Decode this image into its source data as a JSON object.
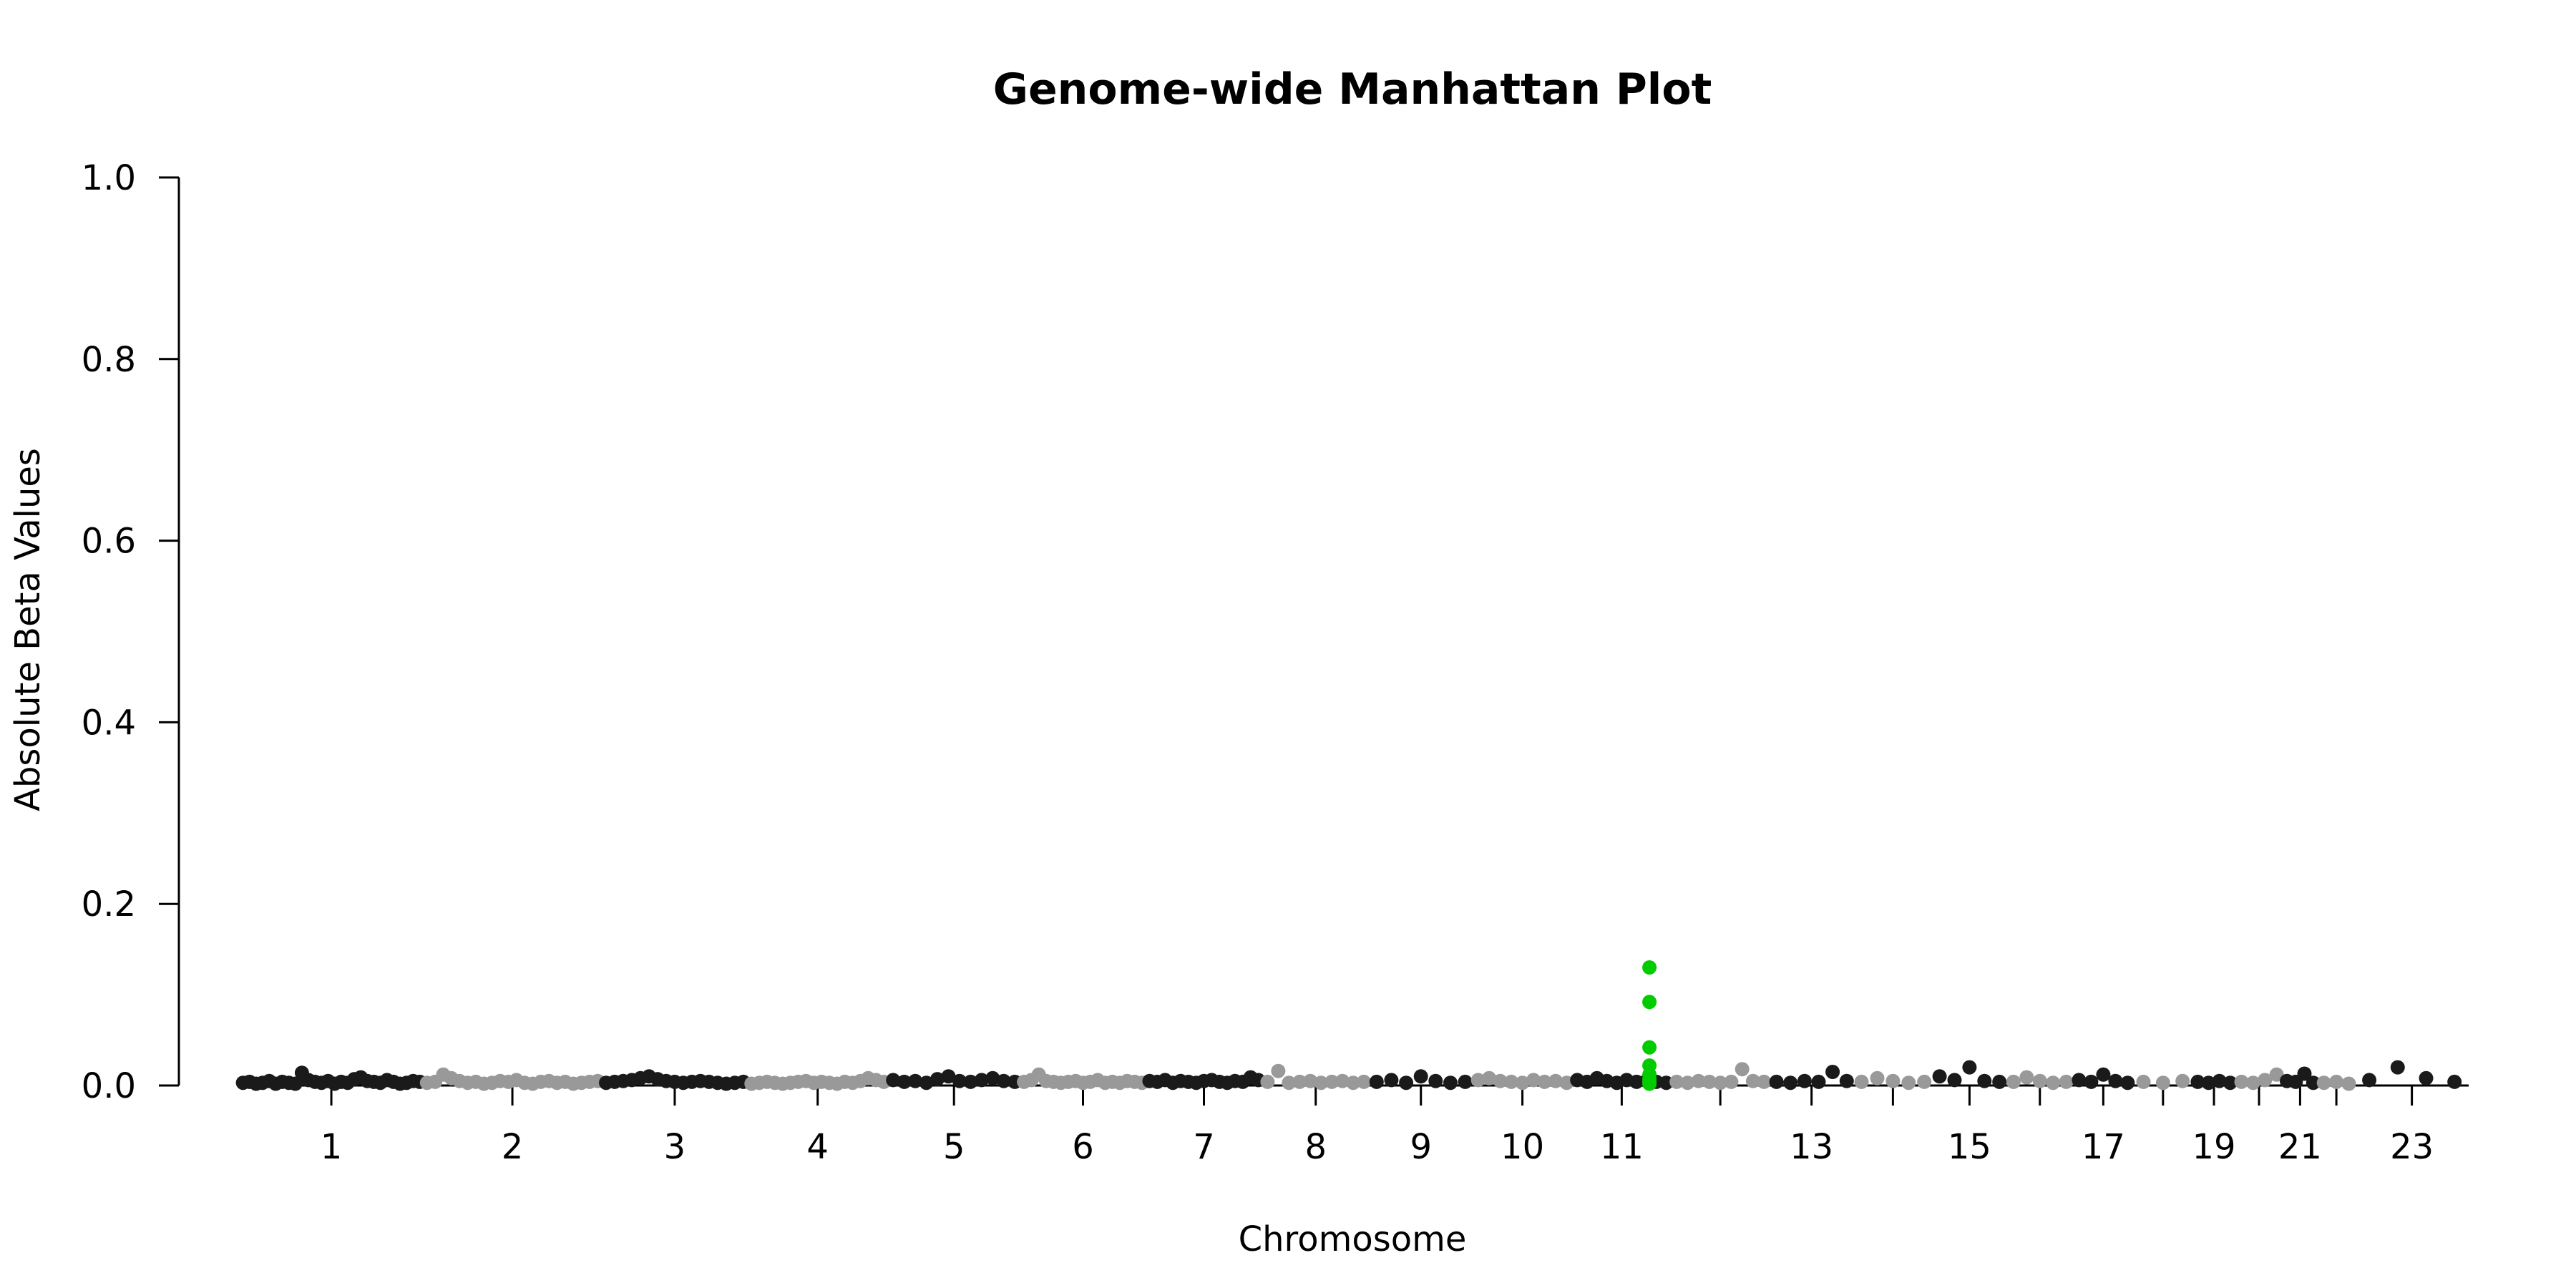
{
  "chart_data": {
    "type": "scatter",
    "title": "Genome-wide Manhattan Plot",
    "xlabel": "Chromosome",
    "ylabel": "Absolute Beta Values",
    "ylim": [
      0,
      1.0
    ],
    "y_ticks": [
      "0.0",
      "0.2",
      "0.4",
      "0.6",
      "0.8",
      "1.0"
    ],
    "grid": false,
    "legend": "none",
    "colors": {
      "dark": "#1a1a1a",
      "light": "#999999",
      "highlight": "#00cc00"
    },
    "chromosomes": [
      {
        "chrom": "1",
        "label": "1",
        "color": "dark"
      },
      {
        "chrom": "2",
        "label": "2",
        "color": "light"
      },
      {
        "chrom": "3",
        "label": "3",
        "color": "dark"
      },
      {
        "chrom": "4",
        "label": "4",
        "color": "light"
      },
      {
        "chrom": "5",
        "label": "5",
        "color": "dark"
      },
      {
        "chrom": "6",
        "label": "6",
        "color": "light"
      },
      {
        "chrom": "7",
        "label": "7",
        "color": "dark"
      },
      {
        "chrom": "8",
        "label": "8",
        "color": "light"
      },
      {
        "chrom": "9",
        "label": "9",
        "color": "dark"
      },
      {
        "chrom": "10",
        "label": "10",
        "color": "light"
      },
      {
        "chrom": "11",
        "label": "11",
        "color": "dark"
      },
      {
        "chrom": "12",
        "label": "",
        "color": "light"
      },
      {
        "chrom": "13",
        "label": "13",
        "color": "dark"
      },
      {
        "chrom": "14",
        "label": "",
        "color": "light"
      },
      {
        "chrom": "15",
        "label": "15",
        "color": "dark"
      },
      {
        "chrom": "16",
        "label": "",
        "color": "light"
      },
      {
        "chrom": "17",
        "label": "17",
        "color": "dark"
      },
      {
        "chrom": "18",
        "label": "",
        "color": "light"
      },
      {
        "chrom": "19",
        "label": "19",
        "color": "dark"
      },
      {
        "chrom": "20",
        "label": "",
        "color": "light"
      },
      {
        "chrom": "21",
        "label": "21",
        "color": "dark"
      },
      {
        "chrom": "22",
        "label": "",
        "color": "light"
      },
      {
        "chrom": "23",
        "label": "23",
        "color": "dark"
      }
    ],
    "points": [
      {
        "chrom": "1",
        "y": [
          0.003,
          0.004,
          0.002,
          0.003,
          0.005,
          0.002,
          0.004,
          0.003,
          0.002,
          0.014,
          0.006,
          0.004,
          0.003,
          0.005,
          0.002,
          0.004,
          0.003,
          0.007,
          0.009,
          0.005,
          0.004,
          0.003,
          0.006,
          0.004,
          0.002,
          0.003,
          0.005,
          0.004
        ]
      },
      {
        "chrom": "2",
        "y": [
          0.003,
          0.004,
          0.012,
          0.008,
          0.005,
          0.003,
          0.004,
          0.002,
          0.003,
          0.005,
          0.004,
          0.006,
          0.003,
          0.002,
          0.004,
          0.005,
          0.003,
          0.004,
          0.002,
          0.003,
          0.004,
          0.005
        ]
      },
      {
        "chrom": "3",
        "y": [
          0.003,
          0.004,
          0.005,
          0.006,
          0.008,
          0.01,
          0.007,
          0.005,
          0.004,
          0.003,
          0.004,
          0.005,
          0.004,
          0.003,
          0.002,
          0.003,
          0.004
        ]
      },
      {
        "chrom": "4",
        "y": [
          0.002,
          0.003,
          0.004,
          0.003,
          0.002,
          0.003,
          0.004,
          0.005,
          0.003,
          0.004,
          0.003,
          0.002,
          0.004,
          0.003,
          0.005,
          0.008,
          0.006,
          0.004
        ]
      },
      {
        "chrom": "5",
        "y": [
          0.006,
          0.004,
          0.005,
          0.003,
          0.007,
          0.01,
          0.005,
          0.004,
          0.006,
          0.008,
          0.005,
          0.004
        ]
      },
      {
        "chrom": "6",
        "y": [
          0.004,
          0.006,
          0.012,
          0.005,
          0.004,
          0.003,
          0.004,
          0.005,
          0.003,
          0.004,
          0.006,
          0.003,
          0.004,
          0.003,
          0.005,
          0.004,
          0.003
        ]
      },
      {
        "chrom": "7",
        "y": [
          0.005,
          0.004,
          0.006,
          0.003,
          0.005,
          0.004,
          0.003,
          0.005,
          0.006,
          0.004,
          0.003,
          0.005,
          0.004,
          0.009,
          0.006
        ]
      },
      {
        "chrom": "8",
        "y": [
          0.004,
          0.016,
          0.003,
          0.004,
          0.005,
          0.003,
          0.004,
          0.005,
          0.003,
          0.004
        ]
      },
      {
        "chrom": "9",
        "y": [
          0.004,
          0.006,
          0.003,
          0.01,
          0.005,
          0.003,
          0.004
        ]
      },
      {
        "chrom": "10",
        "y": [
          0.006,
          0.008,
          0.005,
          0.004,
          0.003,
          0.006,
          0.004,
          0.005,
          0.003
        ]
      },
      {
        "chrom": "11",
        "y": [
          0.006,
          0.004,
          0.008,
          0.005,
          0.003,
          0.006,
          0.004,
          0.005,
          0.004,
          0.003
        ]
      },
      {
        "chrom": "11",
        "highlight": true,
        "y": [
          0.13,
          0.092,
          0.042,
          0.022,
          0.012,
          0.007,
          0.005,
          0.003,
          0.002
        ]
      },
      {
        "chrom": "12",
        "y": [
          0.004,
          0.003,
          0.005,
          0.004,
          0.003,
          0.004,
          0.018,
          0.005,
          0.004
        ]
      },
      {
        "chrom": "13",
        "y": [
          0.004,
          0.003,
          0.005,
          0.004,
          0.015,
          0.005
        ]
      },
      {
        "chrom": "14",
        "y": [
          0.004,
          0.008,
          0.005,
          0.003,
          0.004
        ]
      },
      {
        "chrom": "15",
        "y": [
          0.01,
          0.006,
          0.02,
          0.005,
          0.004
        ]
      },
      {
        "chrom": "16",
        "y": [
          0.004,
          0.009,
          0.005,
          0.003,
          0.004
        ]
      },
      {
        "chrom": "17",
        "y": [
          0.006,
          0.004,
          0.012,
          0.005,
          0.003
        ]
      },
      {
        "chrom": "18",
        "y": [
          0.004,
          0.003,
          0.005
        ]
      },
      {
        "chrom": "19",
        "y": [
          0.004,
          0.003,
          0.005,
          0.003
        ]
      },
      {
        "chrom": "20",
        "y": [
          0.004,
          0.003,
          0.006,
          0.012
        ]
      },
      {
        "chrom": "21",
        "y": [
          0.005,
          0.004,
          0.013,
          0.003
        ]
      },
      {
        "chrom": "22",
        "y": [
          0.003,
          0.004,
          0.002
        ]
      },
      {
        "chrom": "23",
        "y": [
          0.006,
          0.02,
          0.008,
          0.004
        ]
      }
    ]
  }
}
